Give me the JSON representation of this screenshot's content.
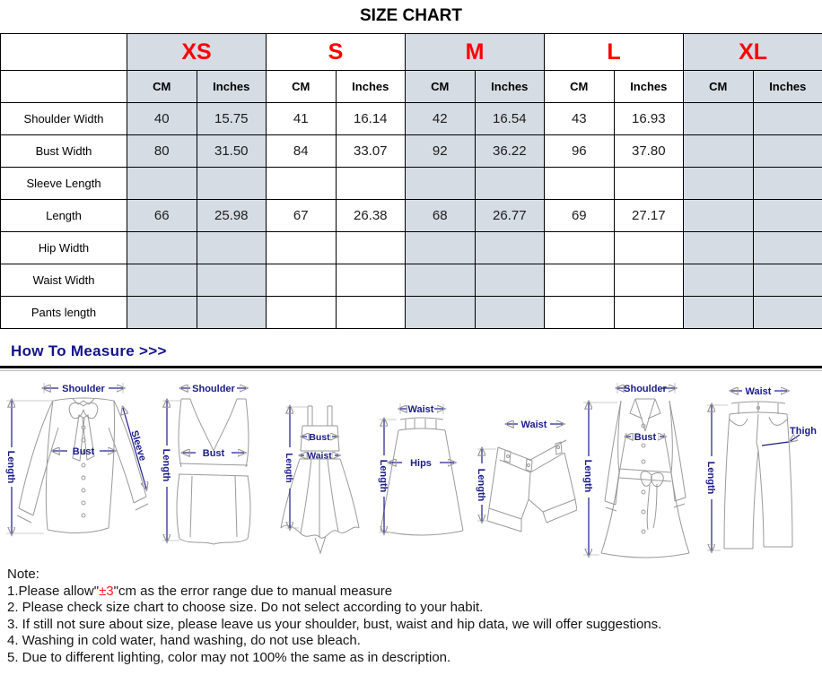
{
  "title": "SIZE CHART",
  "colors": {
    "size_red": "#ff0000",
    "label_navy": "#1b1b8a",
    "cell_gray": "#d6dce4"
  },
  "size_table": {
    "sizes": [
      "XS",
      "S",
      "M",
      "L",
      "XL"
    ],
    "unit_headers": [
      "CM",
      "Inches"
    ],
    "rows": [
      {
        "label": "Shoulder Width",
        "values": [
          "40",
          "15.75",
          "41",
          "16.14",
          "42",
          "16.54",
          "43",
          "16.93",
          "",
          ""
        ]
      },
      {
        "label": "Bust Width",
        "values": [
          "80",
          "31.50",
          "84",
          "33.07",
          "92",
          "36.22",
          "96",
          "37.80",
          "",
          ""
        ]
      },
      {
        "label": "Sleeve Length",
        "values": [
          "",
          "",
          "",
          "",
          "",
          "",
          "",
          "",
          "",
          ""
        ]
      },
      {
        "label": "Length",
        "values": [
          "66",
          "25.98",
          "67",
          "26.38",
          "68",
          "26.77",
          "69",
          "27.17",
          "",
          ""
        ]
      },
      {
        "label": "Hip Width",
        "values": [
          "",
          "",
          "",
          "",
          "",
          "",
          "",
          "",
          "",
          ""
        ]
      },
      {
        "label": "Waist Width",
        "values": [
          "",
          "",
          "",
          "",
          "",
          "",
          "",
          "",
          "",
          ""
        ]
      },
      {
        "label": "Pants length",
        "values": [
          "",
          "",
          "",
          "",
          "",
          "",
          "",
          "",
          "",
          ""
        ]
      }
    ]
  },
  "measure": {
    "heading": "How To Measure >>>",
    "figures": [
      {
        "name": "blouse",
        "labels": {
          "shoulder": "Shoulder",
          "length": "Length",
          "bust": "Bust",
          "sleeve": "Sleeve"
        }
      },
      {
        "name": "vest",
        "labels": {
          "shoulder": "Shoulder",
          "length": "Length",
          "bust": "Bust"
        }
      },
      {
        "name": "dress",
        "labels": {
          "length": "Length",
          "bust": "Bust",
          "waist": "Waist"
        }
      },
      {
        "name": "skirt",
        "labels": {
          "waist": "Waist",
          "length": "Length",
          "hips": "Hips"
        }
      },
      {
        "name": "shorts",
        "labels": {
          "waist": "Waist",
          "length": "Length"
        }
      },
      {
        "name": "coat",
        "labels": {
          "shoulder": "Shoulder",
          "bust": "Bust",
          "length": "Length"
        }
      },
      {
        "name": "pants",
        "labels": {
          "waist": "Waist",
          "length": "Length",
          "thigh": "Thigh"
        }
      }
    ]
  },
  "note": {
    "heading": "Note:",
    "line1": {
      "pre": "1.Please allow\"",
      "red": "±3",
      "post": "\"cm as the error range due to manual measure"
    },
    "lines": [
      "2. Please check size chart to choose size. Do not select according to your habit.",
      "3. If still not sure about size, please leave us your shoulder, bust, waist and hip data, we will offer suggestions.",
      "4. Washing in cold water, hand washing, do not use bleach.",
      "5. Due to different lighting, color may not 100% the same as in description."
    ]
  }
}
